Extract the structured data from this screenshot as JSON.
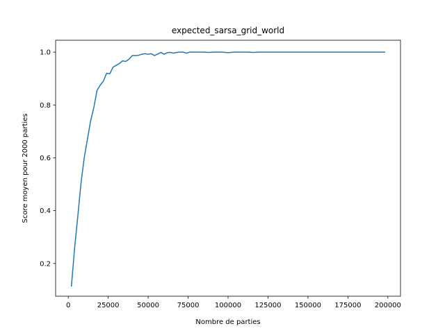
{
  "chart_data": {
    "type": "line",
    "title": "expected_sarsa_grid_world",
    "xlabel": "Nombre de parties",
    "ylabel": "Score moyen pour 2000 parties",
    "xlim": [
      -7900,
      207900
    ],
    "ylim": [
      0.076,
      1.045
    ],
    "xticks": [
      0,
      25000,
      50000,
      75000,
      100000,
      125000,
      150000,
      175000,
      200000
    ],
    "yticks": [
      0.2,
      0.4,
      0.6,
      0.8,
      1.0
    ],
    "xtick_labels": [
      "0",
      "25000",
      "50000",
      "75000",
      "100000",
      "125000",
      "150000",
      "175000",
      "200000"
    ],
    "ytick_labels": [
      "0.2",
      "0.4",
      "0.6",
      "0.8",
      "1.0"
    ],
    "grid": false,
    "series": [
      {
        "name": "expected_sarsa_grid_world",
        "color": "#1f77b4",
        "x": [
          2000,
          4000,
          6000,
          8000,
          10000,
          12000,
          14000,
          16000,
          18000,
          20000,
          22000,
          24000,
          26000,
          28000,
          30000,
          32000,
          34000,
          36000,
          38000,
          40000,
          42000,
          44000,
          46000,
          48000,
          50000,
          52000,
          54000,
          56000,
          58000,
          60000,
          62000,
          64000,
          66000,
          68000,
          70000,
          72000,
          74000,
          76000,
          78000,
          80000,
          84000,
          88000,
          92000,
          96000,
          100000,
          104000,
          108000,
          112000,
          116000,
          120000,
          140000,
          160000,
          180000,
          198000
        ],
        "y": [
          0.115,
          0.26,
          0.38,
          0.505,
          0.6,
          0.67,
          0.74,
          0.79,
          0.855,
          0.875,
          0.89,
          0.92,
          0.918,
          0.943,
          0.95,
          0.957,
          0.967,
          0.965,
          0.973,
          0.987,
          0.987,
          0.988,
          0.992,
          0.994,
          0.992,
          0.994,
          0.987,
          0.993,
          0.999,
          0.992,
          0.998,
          0.999,
          0.996,
          0.999,
          1.0,
          1.0,
          0.996,
          1.0,
          1.0,
          1.0,
          1.0,
          0.999,
          1.0,
          1.0,
          0.998,
          1.0,
          1.0,
          1.0,
          0.999,
          1.0,
          1.0,
          1.0,
          1.0,
          1.0
        ]
      }
    ]
  }
}
